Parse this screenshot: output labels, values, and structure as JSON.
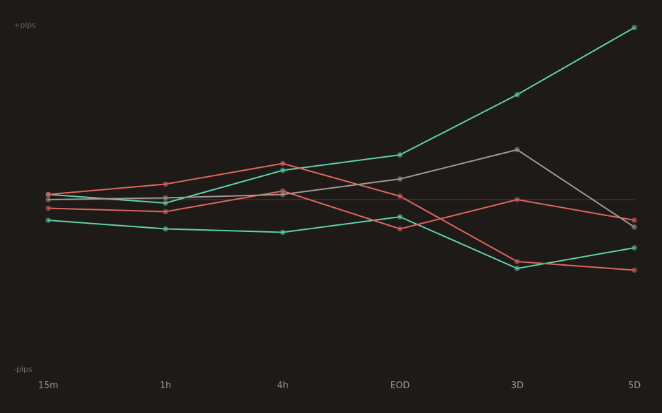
{
  "chart_data": {
    "type": "line",
    "categories": [
      "15m",
      "1h",
      "4h",
      "EOD",
      "3D",
      "5D"
    ],
    "ylabel_top": "+pips",
    "ylabel_bottom": "-pips",
    "ylim": [
      -100,
      100
    ],
    "grid": false,
    "zero_line": true,
    "legend": "none",
    "series": [
      {
        "color": "#5ed4ab",
        "values": [
          3,
          -2,
          17,
          26,
          61,
          100
        ]
      },
      {
        "color": "#5ed4ab",
        "values": [
          -12,
          -17,
          -19,
          -10,
          -40,
          -28
        ]
      },
      {
        "color": "#e0675d",
        "values": [
          3,
          9,
          21,
          2,
          -36,
          -41
        ]
      },
      {
        "color": "#e0675d",
        "values": [
          -5,
          -7,
          5,
          -17,
          0,
          -12
        ]
      },
      {
        "color": "#a39a92",
        "values": [
          0,
          1,
          3,
          12,
          29,
          -16
        ]
      }
    ]
  },
  "colors": {
    "background": "#1e1a17",
    "zero_line": "#3a3532",
    "axis_note": "#6f6863",
    "tick_label": "#9e968f"
  }
}
